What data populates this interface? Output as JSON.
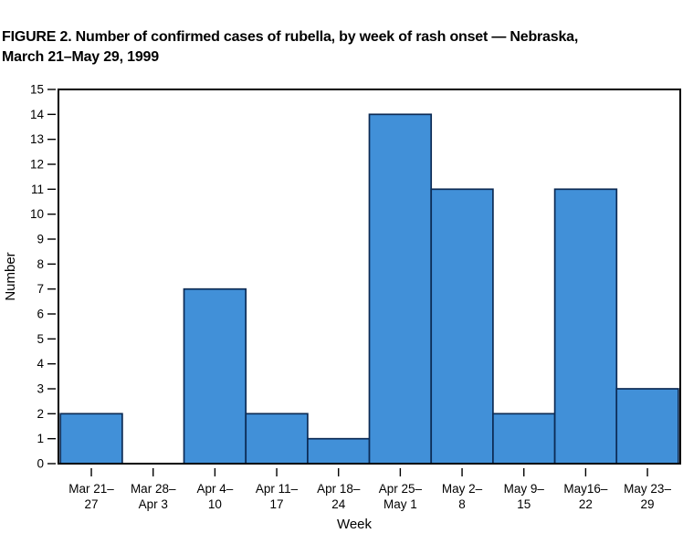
{
  "figure": {
    "title_line1": "FIGURE 2. Number of confirmed cases of rubella, by week of rash onset — Nebraska,",
    "title_line2": "March 21–May 29, 1999"
  },
  "chart_data": {
    "type": "bar",
    "title": "FIGURE 2. Number of confirmed cases of rubella, by week of rash onset — Nebraska, March 21–May 29, 1999",
    "xlabel": "Week",
    "ylabel": "Number",
    "ylim": [
      0,
      15
    ],
    "ytick_step": 1,
    "grid": false,
    "legend": "none",
    "bar_fill": "#4190d8",
    "bar_stroke": "#0c2b55",
    "axis_color": "#000000",
    "text_color": "#000000",
    "categories": [
      "Mar 21–\n27",
      "Mar 28–\nApr 3",
      "Apr 4–\n10",
      "Apr 11–\n17",
      "Apr 18–\n24",
      "Apr 25–\nMay 1",
      "May 2–\n8",
      "May 9–\n15",
      "May16–\n22",
      "May 23–\n29"
    ],
    "values": [
      2,
      0,
      7,
      2,
      1,
      14,
      11,
      2,
      11,
      3
    ]
  }
}
